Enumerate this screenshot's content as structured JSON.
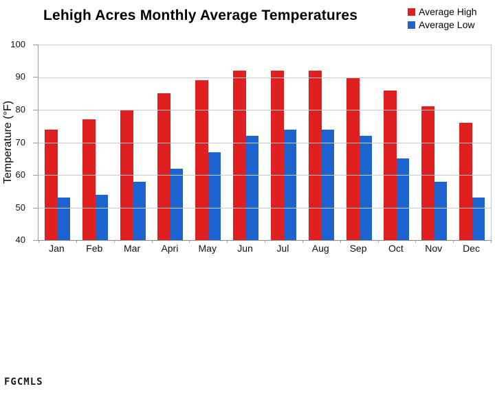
{
  "watermark": "FGCMLS",
  "y_axis": {
    "ticks": [
      100,
      90,
      80,
      70,
      60,
      50,
      40
    ]
  },
  "chart_data": {
    "type": "bar",
    "title": "Lehigh Acres Monthly Average Temperatures",
    "categories": [
      "Jan",
      "Feb",
      "Mar",
      "Apri",
      "May",
      "Jun",
      "Jul",
      "Aug",
      "Sep",
      "Oct",
      "Nov",
      "Dec"
    ],
    "series": [
      {
        "name": "Average High",
        "color": "#E02020",
        "values": [
          74,
          77,
          80,
          85,
          89,
          92,
          92,
          92,
          90,
          86,
          81,
          76
        ]
      },
      {
        "name": "Average Low",
        "color": "#1E64D0",
        "values": [
          53,
          54,
          58,
          62,
          67,
          72,
          74,
          74,
          72,
          65,
          58,
          53
        ]
      }
    ],
    "xlabel": "",
    "ylabel": "Temperature (°F)",
    "ylim": [
      40,
      100
    ],
    "grid": true,
    "legend_position": "top-right"
  }
}
